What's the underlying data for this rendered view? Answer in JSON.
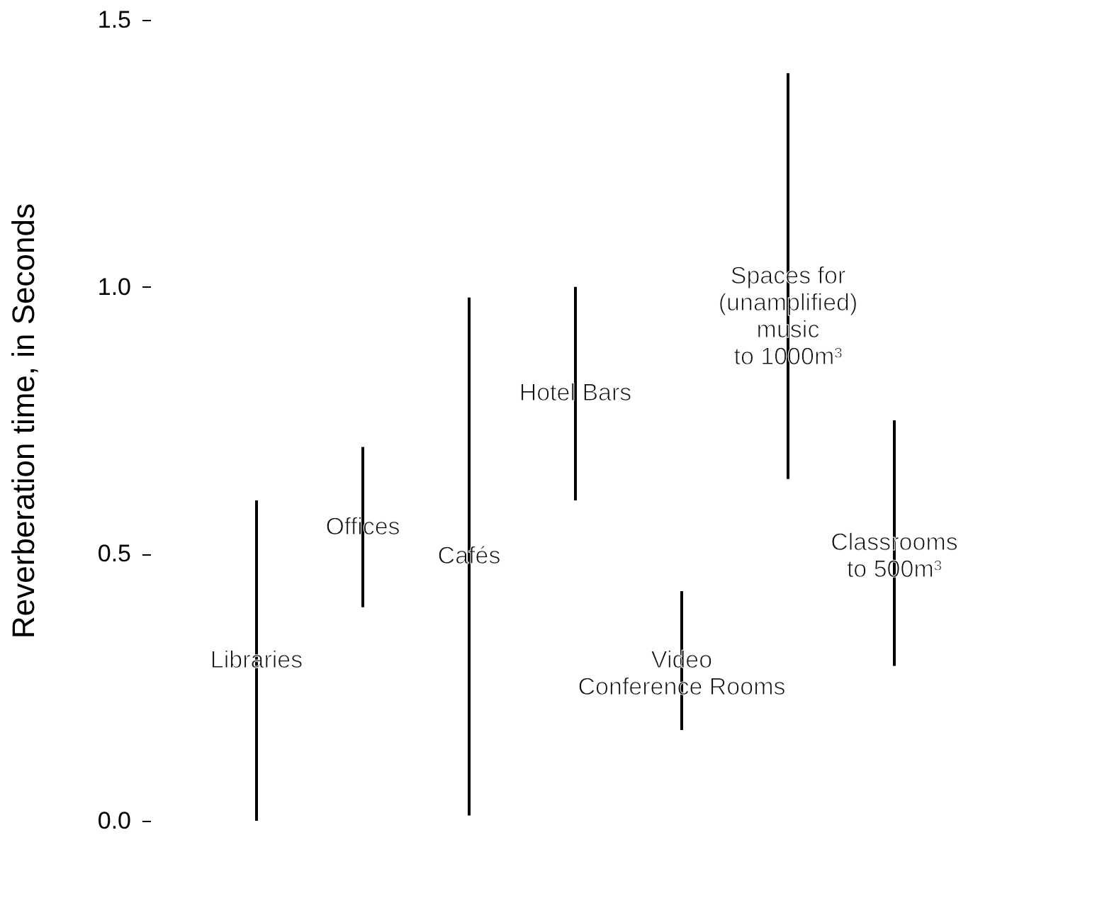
{
  "chart_data": {
    "type": "bar",
    "ylabel": "Reverberation time, in Seconds",
    "categories": [
      "Libraries",
      "Offices",
      "Cafés",
      "Hotel Bars",
      "Video\nConference Rooms",
      "Spaces for\n(unamplified)\nmusic\nto 1000m³",
      "Classrooms\nto 500m³"
    ],
    "base": [
      0,
      0.4,
      0.01,
      0.6,
      0.17,
      0.64,
      0.29
    ],
    "values": [
      0.6,
      0.3,
      0.97,
      0.4,
      0.26,
      0.76,
      0.46
    ],
    "color": "#000000",
    "ylim": [
      0,
      1.5
    ],
    "yticks": [
      {
        "value": 0,
        "label": "0.0"
      },
      {
        "value": 0.5,
        "label": "0.5"
      },
      {
        "value": 1,
        "label": "1.0"
      },
      {
        "value": 1.5,
        "label": "1.5"
      }
    ],
    "tick_labels": "y",
    "grid": false
  }
}
